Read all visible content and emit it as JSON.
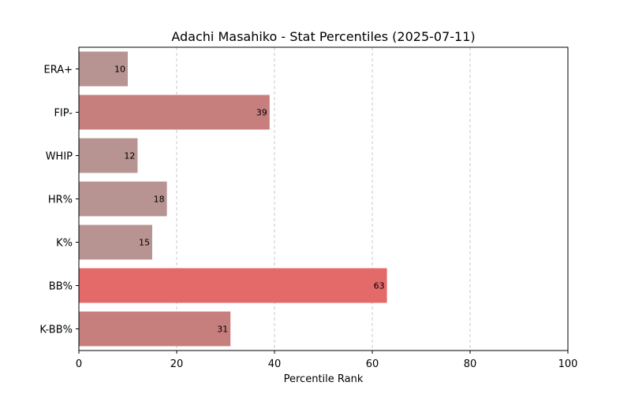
{
  "chart_data": {
    "type": "bar",
    "orientation": "horizontal",
    "title": "Adachi Masahiko - Stat Percentiles (2025-07-11)",
    "xlabel": "Percentile Rank",
    "ylabel": "",
    "xlim": [
      0,
      100
    ],
    "xticks": [
      0,
      20,
      40,
      60,
      80,
      100
    ],
    "grid": "x-dashed",
    "categories": [
      "ERA+",
      "FIP-",
      "WHIP",
      "HR%",
      "K%",
      "BB%",
      "K-BB%"
    ],
    "values": [
      10,
      39,
      12,
      18,
      15,
      63,
      31
    ],
    "bar_colors": [
      "#b79391",
      "#c77f7e",
      "#b79391",
      "#b79391",
      "#b79391",
      "#e46a6a",
      "#c77f7e"
    ],
    "colors": {
      "axis": "#000000",
      "grid": "#c8c8c8",
      "text": "#000000"
    }
  }
}
